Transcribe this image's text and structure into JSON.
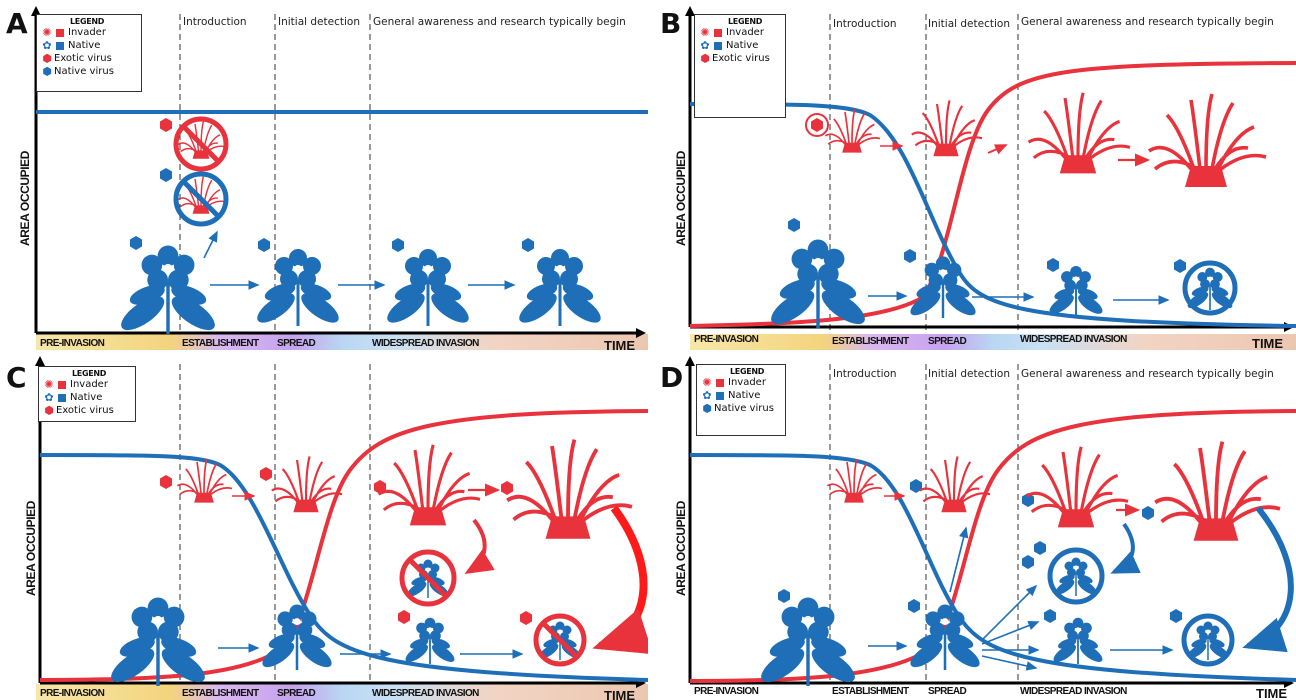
{
  "panels": [
    {
      "letter": "A",
      "legend": {
        "title": "LEGEND",
        "items": [
          {
            "label": "Invader",
            "icon": "invader-grass-icon",
            "color": "#e8323c"
          },
          {
            "label": "Native",
            "icon": "native-flower-icon",
            "color": "#1f6fb8"
          },
          {
            "label": "Exotic virus",
            "icon": "exotic-virus-icon",
            "color": "#e8323c"
          },
          {
            "label": "Native virus",
            "icon": "native-virus-icon",
            "color": "#1f6fb8"
          }
        ]
      },
      "phases": {
        "introduction": "Introduction",
        "detection": "Initial detection",
        "awareness": "General awareness and research typically begin"
      },
      "y_label": "AREA OCCUPIED",
      "x_label": "TIME",
      "stages": {
        "pre": "PRE-INVASION",
        "est": "ESTABLISHMENT",
        "spread": "SPREAD",
        "wide": "WIDESPREAD INVASION"
      }
    },
    {
      "letter": "B",
      "legend": {
        "title": "LEGEND",
        "items": [
          {
            "label": "Invader",
            "icon": "invader-grass-icon",
            "color": "#e8323c"
          },
          {
            "label": "Native",
            "icon": "native-flower-icon",
            "color": "#1f6fb8"
          },
          {
            "label": "Exotic virus",
            "icon": "exotic-virus-icon",
            "color": "#e8323c"
          }
        ]
      },
      "phases": {
        "introduction": "Introduction",
        "detection": "Initial detection",
        "awareness": "General awareness and research typically begin"
      },
      "y_label": "AREA OCCUPIED",
      "x_label": "TIME",
      "stages": {
        "pre": "PRE-INVASION",
        "est": "ESTABLISHMENT",
        "spread": "SPREAD",
        "wide": "WIDESPREAD INVASION"
      }
    },
    {
      "letter": "C",
      "legend": {
        "title": "LEGEND",
        "items": [
          {
            "label": "Invader",
            "icon": "invader-grass-icon",
            "color": "#e8323c"
          },
          {
            "label": "Native",
            "icon": "native-flower-icon",
            "color": "#1f6fb8"
          },
          {
            "label": "Exotic virus",
            "icon": "exotic-virus-icon",
            "color": "#e8323c"
          }
        ]
      },
      "phases": {
        "introduction": "",
        "detection": "",
        "awareness": ""
      },
      "y_label": "AREA OCCUPIED",
      "x_label": "TIME",
      "stages": {
        "pre": "PRE-INVASION",
        "est": "ESTABLISHMENT",
        "spread": "SPREAD",
        "wide": "WIDESPREAD INVASION"
      }
    },
    {
      "letter": "D",
      "legend": {
        "title": "LEGEND",
        "items": [
          {
            "label": "Invader",
            "icon": "invader-grass-icon",
            "color": "#e8323c"
          },
          {
            "label": "Native",
            "icon": "native-flower-icon",
            "color": "#1f6fb8"
          },
          {
            "label": "Native virus",
            "icon": "native-virus-icon",
            "color": "#1f6fb8"
          }
        ]
      },
      "phases": {
        "introduction": "Introduction",
        "detection": "Initial detection",
        "awareness": "General awareness and research typically begin"
      },
      "y_label": "AREA OCCUPIED",
      "x_label": "TIME",
      "stages": {
        "pre": "PRE-INVASION",
        "est": "ESTABLISHMENT",
        "spread": "SPREAD",
        "wide": "WIDESPREAD INVASION"
      }
    }
  ],
  "colors": {
    "invader": "#e8323c",
    "native": "#1f6fb8",
    "axis": "#000000"
  }
}
